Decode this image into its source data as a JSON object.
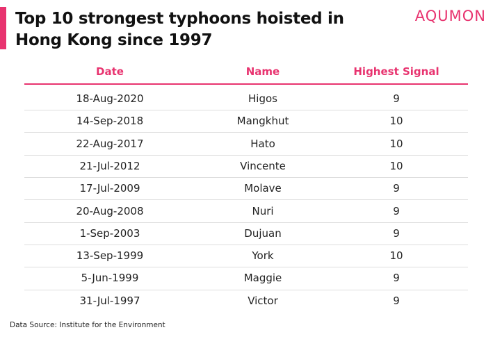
{
  "header": {
    "title": "Top 10 strongest typhoons hoisted in Hong Kong since 1997",
    "brand": "AQUMON"
  },
  "table": {
    "columns": [
      "Date",
      "Name",
      "Highest Signal"
    ],
    "rows": [
      [
        "18-Aug-2020",
        "Higos",
        9
      ],
      [
        "14-Sep-2018",
        "Mangkhut",
        10
      ],
      [
        "22-Aug-2017",
        "Hato",
        10
      ],
      [
        "21-Jul-2012",
        "Vincente",
        10
      ],
      [
        "17-Jul-2009",
        "Molave",
        9
      ],
      [
        "20-Aug-2008",
        "Nuri",
        9
      ],
      [
        "1-Sep-2003",
        "Dujuan",
        9
      ],
      [
        "13-Sep-1999",
        "York",
        10
      ],
      [
        "5-Jun-1999",
        "Maggie",
        9
      ],
      [
        "31-Jul-1997",
        "Victor",
        9
      ]
    ]
  },
  "source": "Data Source: Institute for the Environment"
}
